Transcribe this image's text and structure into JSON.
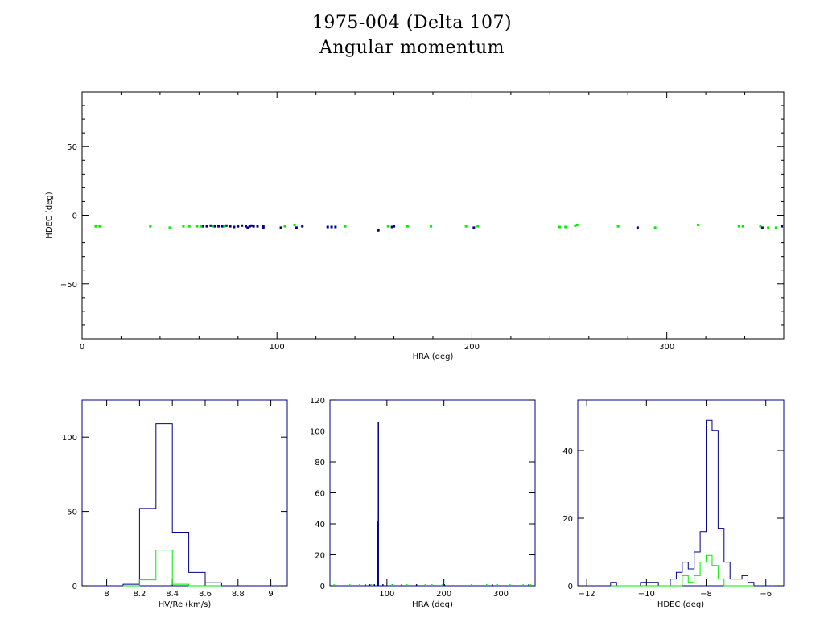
{
  "title": "1975-004 (Delta 107)",
  "subtitle": "Angular momentum",
  "colors": {
    "primary": "#00008b",
    "secondary": "#00ee00",
    "axis": "#000000"
  },
  "chart_data": [
    {
      "type": "scatter",
      "xlabel": "HRA (deg)",
      "ylabel": "HDEC (deg)",
      "xlim": [
        0,
        360
      ],
      "ylim": [
        -90,
        90
      ],
      "xticks": [
        "0",
        "100",
        "200",
        "300"
      ],
      "yticks": [
        "50",
        "0",
        "−50"
      ],
      "series": [
        {
          "color": "#00008b",
          "points": [
            [
              62,
              -8
            ],
            [
              64,
              -8
            ],
            [
              66,
              -7.5
            ],
            [
              68,
              -8
            ],
            [
              70,
              -8
            ],
            [
              72,
              -8
            ],
            [
              74,
              -7.5
            ],
            [
              76,
              -8
            ],
            [
              78,
              -8.5
            ],
            [
              80,
              -8
            ],
            [
              82,
              -7.5
            ],
            [
              84,
              -8
            ],
            [
              85,
              -9
            ],
            [
              86,
              -8
            ],
            [
              87,
              -7.5
            ],
            [
              88,
              -8
            ],
            [
              90,
              -8
            ],
            [
              93,
              -8
            ],
            [
              93,
              -9
            ],
            [
              102,
              -9
            ],
            [
              110,
              -9
            ],
            [
              113,
              -8
            ],
            [
              126,
              -8.5
            ],
            [
              128,
              -8.5
            ],
            [
              130,
              -8.5
            ],
            [
              152,
              -11
            ],
            [
              159,
              -8.5
            ],
            [
              160,
              -8
            ],
            [
              201,
              -9
            ],
            [
              285,
              -9
            ],
            [
              349,
              -9
            ],
            [
              359,
              -8
            ]
          ]
        },
        {
          "color": "#00ee00",
          "points": [
            [
              7,
              -8
            ],
            [
              9,
              -8
            ],
            [
              35,
              -8
            ],
            [
              45,
              -9
            ],
            [
              52,
              -8
            ],
            [
              55,
              -8
            ],
            [
              59,
              -8
            ],
            [
              61,
              -8
            ],
            [
              67,
              -8
            ],
            [
              73,
              -8
            ],
            [
              104,
              -8
            ],
            [
              109,
              -7
            ],
            [
              135,
              -8
            ],
            [
              157,
              -8
            ],
            [
              167,
              -8
            ],
            [
              179,
              -8
            ],
            [
              197,
              -8
            ],
            [
              203,
              -8
            ],
            [
              245,
              -8.5
            ],
            [
              248,
              -8.5
            ],
            [
              253,
              -7.5
            ],
            [
              254,
              -7
            ],
            [
              275,
              -8
            ],
            [
              294,
              -9
            ],
            [
              316,
              -7
            ],
            [
              337,
              -8
            ],
            [
              339,
              -8
            ],
            [
              348,
              -8
            ],
            [
              352,
              -9
            ],
            [
              356,
              -9
            ]
          ]
        }
      ]
    },
    {
      "type": "histogram",
      "xlabel": "HV/Re (km/s)",
      "ylabel": "",
      "xlim": [
        7.85,
        9.1
      ],
      "ylim": [
        0,
        125
      ],
      "xticks": [
        "8",
        "8.2",
        "8.4",
        "8.6",
        "8.8",
        "9"
      ],
      "yticks": [
        "0",
        "50",
        "100"
      ],
      "bin_edges": [
        8.1,
        8.2,
        8.3,
        8.4,
        8.5,
        8.6,
        8.7
      ],
      "series": [
        {
          "color": "#00008b",
          "values": [
            1,
            52,
            109,
            36,
            9,
            2
          ]
        },
        {
          "color": "#00ee00",
          "values": [
            0,
            4,
            24,
            1,
            0,
            0
          ]
        }
      ]
    },
    {
      "type": "histogram",
      "xlabel": "HRA (deg)",
      "ylabel": "",
      "xlim": [
        0,
        360
      ],
      "ylim": [
        0,
        120
      ],
      "xticks": [
        "100",
        "200",
        "300"
      ],
      "yticks": [
        "0",
        "20",
        "40",
        "60",
        "80",
        "100",
        "120"
      ],
      "series": [
        {
          "color": "#00008b",
          "bars": [
            [
              84,
              42
            ],
            [
              85,
              106
            ],
            [
              62,
              1
            ],
            [
              70,
              1
            ],
            [
              78,
              1
            ],
            [
              93,
              1
            ],
            [
              110,
              1
            ],
            [
              126,
              1
            ],
            [
              152,
              1
            ],
            [
              201,
              1
            ],
            [
              285,
              1
            ],
            [
              349,
              1
            ]
          ]
        },
        {
          "color": "#00ee00",
          "bars": [
            [
              7,
              1
            ],
            [
              35,
              1
            ],
            [
              52,
              1
            ],
            [
              73,
              1
            ],
            [
              109,
              1
            ],
            [
              135,
              1
            ],
            [
              167,
              1
            ],
            [
              179,
              1
            ],
            [
              197,
              1
            ],
            [
              248,
              1
            ],
            [
              275,
              1
            ],
            [
              294,
              1
            ],
            [
              316,
              1
            ],
            [
              339,
              1
            ],
            [
              352,
              1
            ]
          ]
        }
      ]
    },
    {
      "type": "histogram",
      "xlabel": "HDEC (deg)",
      "ylabel": "",
      "xlim": [
        -12.3,
        -5.4
      ],
      "ylim": [
        0,
        55
      ],
      "xticks": [
        "−12",
        "−10",
        "−8",
        "−6"
      ],
      "yticks": [
        "0",
        "20",
        "40"
      ],
      "bin_start": -11.2,
      "bin_width": 0.2,
      "series": [
        {
          "color": "#00008b",
          "values": [
            1,
            0,
            0,
            0,
            0,
            1,
            1,
            1,
            0,
            0,
            2,
            4,
            7,
            5,
            10,
            16,
            49,
            46,
            17,
            7,
            2,
            2,
            3,
            1
          ]
        },
        {
          "color": "#00ee00",
          "values": [
            0,
            0,
            0,
            0,
            0,
            0,
            0,
            0,
            0,
            0,
            0,
            0,
            3,
            1,
            3,
            7,
            9,
            6,
            2,
            0,
            0,
            0,
            0,
            0
          ]
        }
      ]
    }
  ]
}
